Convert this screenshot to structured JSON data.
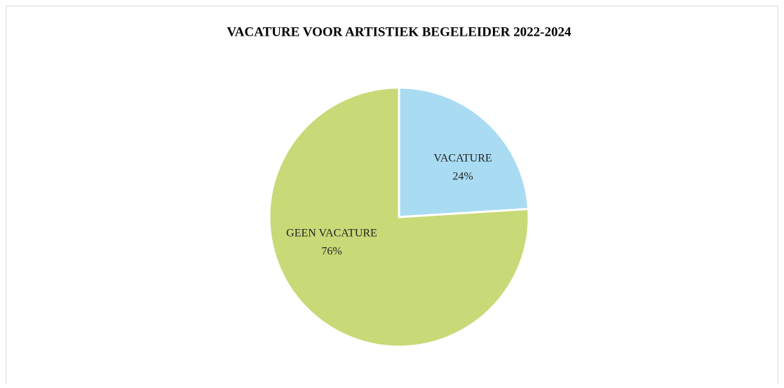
{
  "chart_data": {
    "type": "pie",
    "title": "VACATURE VOOR ARTISTIEK BEGELEIDER 2022-2024",
    "categories": [
      "VACATURE",
      "GEEN VACATURE"
    ],
    "values": [
      24,
      76
    ],
    "value_labels": [
      "24%",
      "76%"
    ],
    "colors": [
      "#a9dcf3",
      "#c8d977"
    ]
  }
}
